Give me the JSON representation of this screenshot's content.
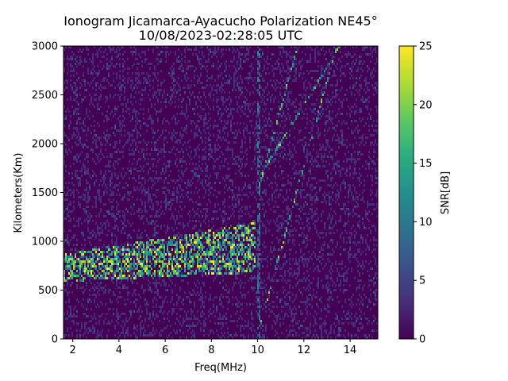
{
  "chart_data": {
    "type": "heatmap",
    "title": "Ionogram Jicamarca-Ayacucho Polarization NE45°",
    "subtitle": "10/08/2023-02:28:05 UTC",
    "xlabel": "Freq(MHz)",
    "ylabel": "Kilometers(Km)",
    "xlim": [
      1.6,
      15.2
    ],
    "ylim": [
      0,
      3000
    ],
    "x_ticks": [
      "2",
      "4",
      "6",
      "8",
      "10",
      "12",
      "14"
    ],
    "y_ticks": [
      "0",
      "500",
      "1000",
      "1500",
      "2000",
      "2500",
      "3000"
    ],
    "colorbar": {
      "label": "SNR[dB]",
      "range": [
        0,
        25
      ],
      "ticks": [
        "0",
        "5",
        "10",
        "15",
        "20",
        "25"
      ],
      "colormap": "viridis"
    },
    "grid": false,
    "features": [
      {
        "name": "F-layer echo",
        "freq_mhz": [
          1.6,
          9.9
        ],
        "range_km": [
          700,
          1200
        ],
        "snr_db": [
          12,
          25
        ]
      },
      {
        "name": "multi-hop traces",
        "freq_mhz": [
          10.0,
          15.0
        ],
        "range_km": [
          0,
          3000
        ],
        "snr_db": [
          5,
          22
        ]
      },
      {
        "name": "interference line",
        "freq_mhz": [
          9.9,
          10.1
        ],
        "range_km": [
          0,
          3000
        ],
        "snr_db": [
          3,
          12
        ]
      }
    ]
  }
}
